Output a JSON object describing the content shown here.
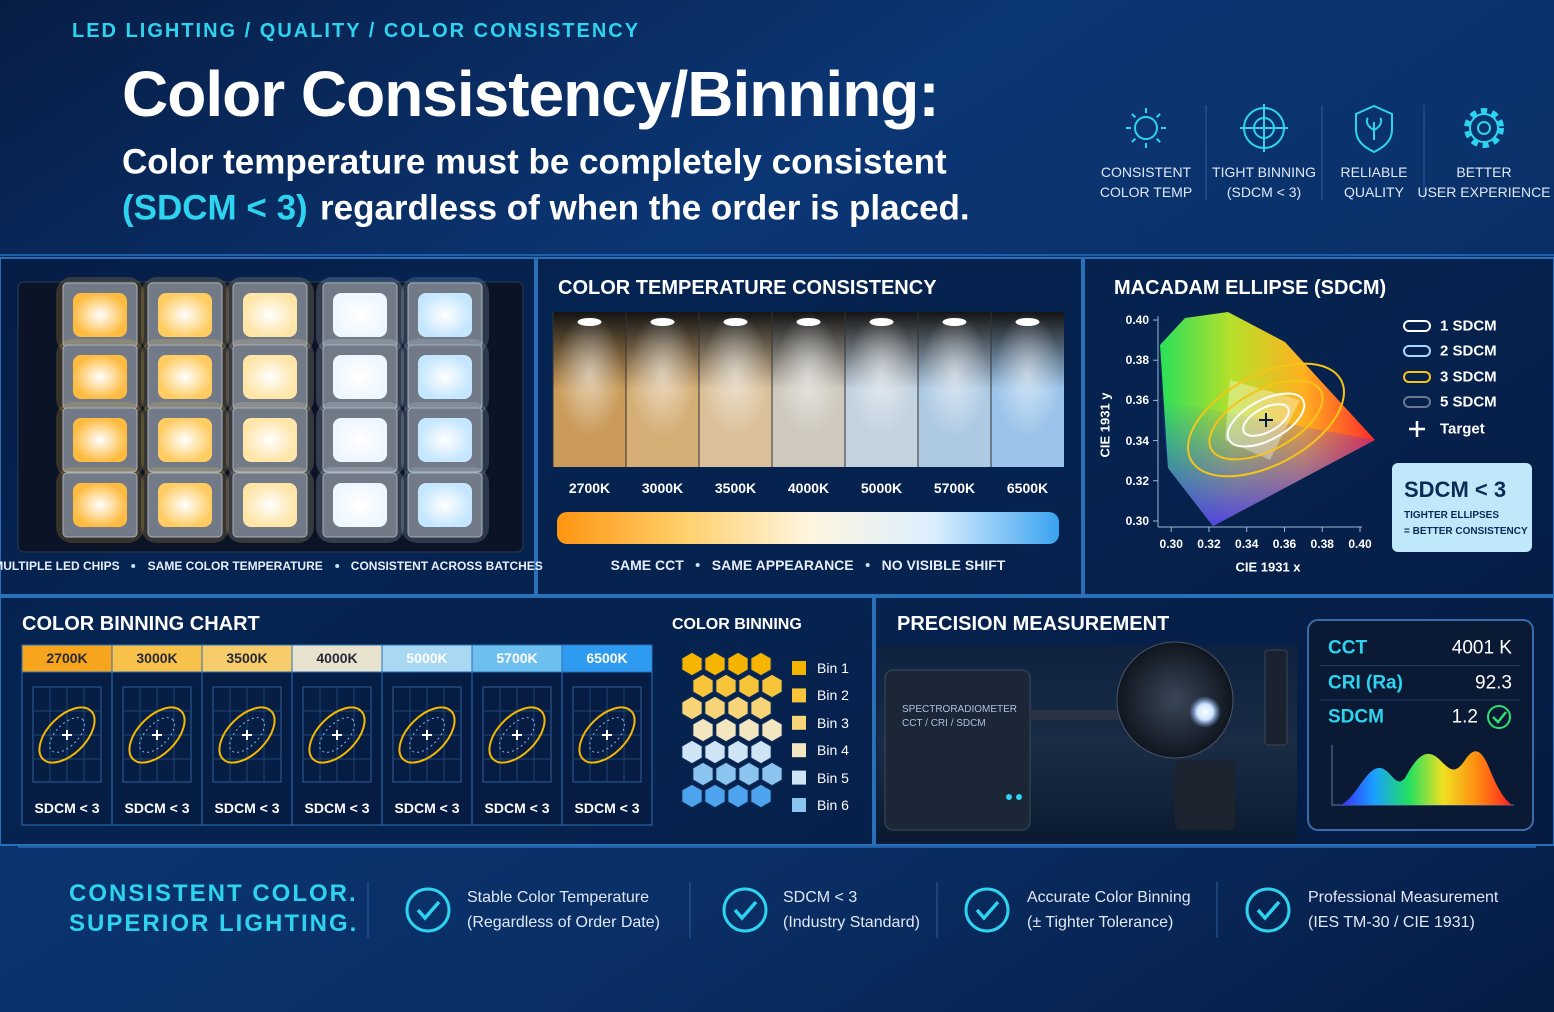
{
  "header": {
    "breadcrumb": "LED LIGHTING / QUALITY / COLOR CONSISTENCY",
    "title": "Color Consistency/Binning:",
    "subtitle_line1": "Color temperature must be completely consistent",
    "subtitle_highlight": "(SDCM < 3)",
    "subtitle_rest": "regardless of when the order is placed."
  },
  "features": [
    {
      "lines": [
        "CONSISTENT",
        "COLOR TEMP"
      ]
    },
    {
      "lines": [
        "TIGHT BINNING",
        "(SDCM < 3)"
      ]
    },
    {
      "lines": [
        "RELIABLE",
        "QUALITY"
      ]
    },
    {
      "lines": [
        "BETTER",
        "USER EXPERIENCE"
      ]
    }
  ],
  "led_panel": {
    "captions": [
      "MULTIPLE LED CHIPS",
      "SAME COLOR TEMPERATURE",
      "CONSISTENT ACROSS BATCHES"
    ]
  },
  "cct_panel": {
    "title": "COLOR TEMPERATURE CONSISTENCY",
    "temperatures": [
      "2700K",
      "3000K",
      "3500K",
      "4000K",
      "5000K",
      "5700K",
      "6500K"
    ],
    "captions": [
      "SAME CCT",
      "SAME APPEARANCE",
      "NO VISIBLE SHIFT"
    ]
  },
  "macadam": {
    "title": "MACADAM ELLIPSE (SDCM)",
    "x_label": "CIE 1931 x",
    "y_label": "CIE 1931 y",
    "xlim": [
      0.293,
      0.4
    ],
    "ylim": [
      0.297,
      0.402
    ],
    "xticks": [
      {
        "value": 0.3,
        "label": "0.30"
      },
      {
        "value": 0.32,
        "label": "0.32"
      },
      {
        "value": 0.34,
        "label": "0.34"
      },
      {
        "value": 0.36,
        "label": "0.36"
      },
      {
        "value": 0.38,
        "label": "0.38"
      },
      {
        "value": 0.4,
        "label": "0.40"
      }
    ],
    "yticks": [
      {
        "value": 0.3,
        "label": "0.30"
      },
      {
        "value": 0.32,
        "label": "0.32"
      },
      {
        "value": 0.34,
        "label": "0.34"
      },
      {
        "value": 0.36,
        "label": "0.36"
      },
      {
        "value": 0.38,
        "label": "0.38"
      },
      {
        "value": 0.4,
        "label": "0.40"
      }
    ],
    "legend": [
      "1 SDCM",
      "2 SDCM",
      "3 SDCM",
      "5 SDCM",
      "Target"
    ],
    "callout": {
      "title": "SDCM < 3",
      "lines": [
        "TIGHTER ELLIPSES",
        "= BETTER CONSISTENCY"
      ]
    }
  },
  "binning_chart": {
    "title": "COLOR BINNING CHART",
    "columns": [
      {
        "cct": "2700K",
        "note": "SDCM < 3"
      },
      {
        "cct": "3000K",
        "note": "SDCM < 3"
      },
      {
        "cct": "3500K",
        "note": "SDCM < 3"
      },
      {
        "cct": "4000K",
        "note": "SDCM < 3"
      },
      {
        "cct": "5000K",
        "note": "SDCM < 3"
      },
      {
        "cct": "5700K",
        "note": "SDCM < 3"
      },
      {
        "cct": "6500K",
        "note": "SDCM < 3"
      }
    ]
  },
  "color_binning": {
    "title": "COLOR BINNING",
    "bins": [
      "Bin 1",
      "Bin 2",
      "Bin 3",
      "Bin 4",
      "Bin 5",
      "Bin 6"
    ]
  },
  "measurement": {
    "title": "PRECISION MEASUREMENT",
    "device_lines": [
      "SPECTRORADIOMETER",
      "CCT / CRI / SDCM"
    ],
    "readings": [
      {
        "label": "CCT",
        "value": "4001 K"
      },
      {
        "label": "CRI (Ra)",
        "value": "92.3"
      },
      {
        "label": "SDCM",
        "value": "1.2"
      }
    ]
  },
  "footer": {
    "tagline": [
      "CONSISTENT COLOR.",
      "SUPERIOR LIGHTING."
    ],
    "items": [
      {
        "title": "Stable Color Temperature",
        "detail": "(Regardless of Order Date)"
      },
      {
        "title": "SDCM < 3",
        "detail": "(Industry Standard)"
      },
      {
        "title": "Accurate Color Binning",
        "detail": "(± Tighter Tolerance)"
      },
      {
        "title": "Professional Measurement",
        "detail": "(IES TM-30 / CIE 1931)"
      }
    ]
  }
}
